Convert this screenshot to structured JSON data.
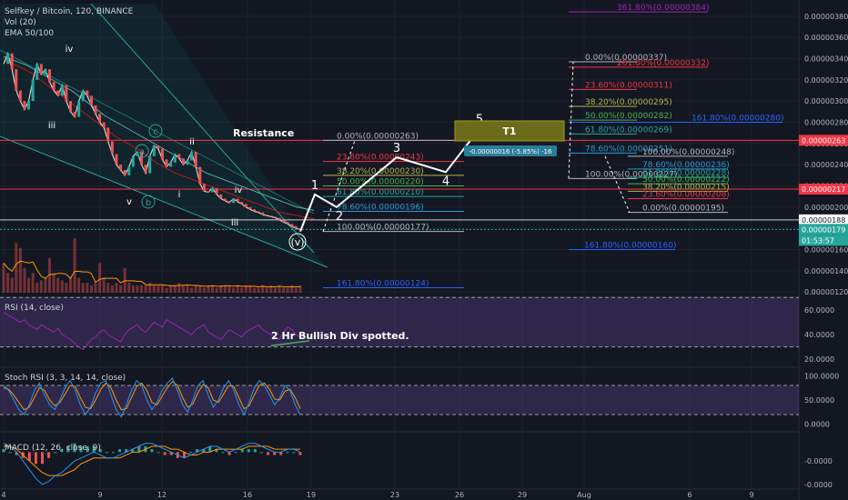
{
  "chart_data": {
    "type": "line",
    "title": "Selfkey / Bitcoin, 120, BINANCE",
    "indicators": {
      "vol": "Vol (20)",
      "ema": "EMA 50/100"
    },
    "x_tick_labels": [
      "4",
      "9",
      "12",
      "16",
      "19",
      "23",
      "26",
      "29",
      "Aug",
      "6",
      "9"
    ],
    "y_axis": {
      "ticks": [
        "0.00000380",
        "0.00000360",
        "0.00000340",
        "0.00000320",
        "0.00000300",
        "0.00000280",
        "0.00000260",
        "0.00000240",
        "0.00000220",
        "0.00000200",
        "0.00000180",
        "0.00000160",
        "0.00000140",
        "0.00000120"
      ],
      "range": [
        1.15e-06,
        3.91e-06
      ]
    },
    "price_tags": [
      {
        "label": "0.00000263",
        "color": "#f23645"
      },
      {
        "label": "0.00000217",
        "color": "#f23645"
      },
      {
        "label": "0.00000188",
        "color": "#ffffff"
      },
      {
        "label": "0.00000179",
        "color": "#26a69a"
      },
      {
        "label": "01:53:57",
        "color": "#26a69a"
      }
    ],
    "annotations": {
      "resistance": "Resistance",
      "target": "T1",
      "measure": "-0.00000016 (-5.85%) -16",
      "bullish_div": "2 Hr Bullish Div spotted."
    },
    "wave_labels_left": [
      "iv",
      "iii",
      "c",
      "a",
      "b",
      "ii",
      "i",
      "v",
      "iv",
      "iii",
      "(v)"
    ],
    "wave_labels_right": [
      "1",
      "2",
      "3",
      "4",
      "5"
    ],
    "fib_set_1": [
      {
        "label": "0.00%(0.00000263)",
        "value": 2.63e-06,
        "color": "#b2b5be"
      },
      {
        "label": "23.60%(0.00000243)",
        "value": 2.43e-06,
        "color": "#f23645"
      },
      {
        "label": "38.20%(0.00000230)",
        "value": 2.3e-06,
        "color": "#b5b54a"
      },
      {
        "label": "50.00%(0.00000220)",
        "value": 2.2e-06,
        "color": "#4caf50"
      },
      {
        "label": "61.80%(0.00000210)",
        "value": 2.1e-06,
        "color": "#26a69a"
      },
      {
        "label": "78.60%(0.00000196)",
        "value": 1.96e-06,
        "color": "#2a9bd6"
      },
      {
        "label": "100.00%(0.00000177)",
        "value": 1.77e-06,
        "color": "#b2b5be"
      },
      {
        "label": "161.80%(0.00000124)",
        "value": 1.24e-06,
        "color": "#2962ff"
      }
    ],
    "fib_set_2": [
      {
        "label": "0.00%(0.00000337)",
        "value": 3.37e-06,
        "color": "#b2b5be"
      },
      {
        "label": "23.60%(0.00000311)",
        "value": 3.11e-06,
        "color": "#f23645"
      },
      {
        "label": "38.20%(0.00000295)",
        "value": 2.95e-06,
        "color": "#b5b54a"
      },
      {
        "label": "50.00%(0.00000282)",
        "value": 2.82e-06,
        "color": "#4caf50"
      },
      {
        "label": "61.80%(0.00000269)",
        "value": 2.69e-06,
        "color": "#26a69a"
      },
      {
        "label": "78.60%(0.00000251)",
        "value": 2.51e-06,
        "color": "#2a9bd6"
      },
      {
        "label": "100.00%(0.00000227)",
        "value": 2.27e-06,
        "color": "#b2b5be"
      }
    ],
    "fib_set_3": [
      {
        "label": "100.00%(0.00000248)",
        "value": 2.48e-06,
        "color": "#b2b5be"
      },
      {
        "label": "78.60%(0.00000236)",
        "value": 2.36e-06,
        "color": "#2a9bd6"
      },
      {
        "label": "61.80%(0.00000228)",
        "value": 2.28e-06,
        "color": "#26a69a"
      },
      {
        "label": "50.00%(0.00000222)",
        "value": 2.22e-06,
        "color": "#4caf50"
      },
      {
        "label": "38.20%(0.00000215)",
        "value": 2.15e-06,
        "color": "#b5b54a"
      },
      {
        "label": "23.60%(0.00000208)",
        "value": 2.08e-06,
        "color": "#f23645"
      },
      {
        "label": "0.00%(0.00000195)",
        "value": 1.95e-06,
        "color": "#b2b5be"
      }
    ],
    "fib_extensions": [
      {
        "label": "361.80%(0.00000384)",
        "value": 3.84e-06,
        "color": "#9c27b0"
      },
      {
        "label": "261.80%(0.00000332)",
        "value": 3.32e-06,
        "color": "#f23645"
      },
      {
        "label": "161.80%(0.00000280)",
        "value": 2.8e-06,
        "color": "#2962ff"
      },
      {
        "label": "161.80%(0.00000160)",
        "value": 1.6e-06,
        "color": "#2962ff"
      }
    ],
    "rsi": {
      "label": "RSI (14, close)",
      "ticks": [
        "60.0000",
        "40.0000",
        "20.0000"
      ],
      "range": [
        15,
        68
      ],
      "values": [
        58,
        56,
        54,
        52,
        50,
        52,
        48,
        46,
        44,
        48,
        46,
        44,
        42,
        45,
        40,
        38,
        36,
        33,
        30,
        28,
        32,
        36,
        38,
        42,
        44,
        40,
        38,
        36,
        34,
        40,
        44,
        46,
        48,
        44,
        42,
        46,
        50,
        48,
        46,
        52,
        50,
        48,
        46,
        44,
        42,
        40,
        44,
        46,
        48,
        42,
        40,
        38,
        36,
        40,
        44,
        42,
        40,
        38,
        42,
        44,
        46,
        48,
        44,
        42,
        40,
        38,
        36,
        42,
        46,
        44,
        40,
        38
      ]
    },
    "stoch_rsi": {
      "label": "Stoch RSI (3, 3, 14, 14, close)",
      "ticks": [
        "100.0000",
        "50.0000",
        "0.0000"
      ],
      "range": [
        -10,
        110
      ],
      "k": [
        80,
        70,
        50,
        30,
        20,
        40,
        70,
        85,
        60,
        40,
        30,
        50,
        75,
        90,
        70,
        40,
        20,
        35,
        65,
        85,
        90,
        60,
        30,
        15,
        40,
        70,
        90,
        80,
        50,
        30,
        45,
        70,
        85,
        95,
        70,
        40,
        25,
        50,
        80,
        90,
        60,
        35,
        50,
        75,
        90,
        70,
        40,
        20,
        45,
        75,
        90,
        80,
        60,
        40,
        55,
        80,
        70,
        40,
        20
      ],
      "d": [
        75,
        72,
        60,
        45,
        30,
        35,
        55,
        75,
        70,
        50,
        38,
        45,
        62,
        80,
        78,
        55,
        35,
        32,
        50,
        72,
        85,
        75,
        50,
        30,
        32,
        55,
        78,
        85,
        70,
        45,
        40,
        58,
        75,
        88,
        80,
        55,
        35,
        42,
        65,
        82,
        75,
        50,
        45,
        62,
        80,
        78,
        55,
        32,
        38,
        60,
        80,
        85,
        72,
        52,
        50,
        68,
        72,
        55,
        32
      ]
    },
    "macd": {
      "label": "MACD (12, 26, close, 9)",
      "ticks": [
        "-0.0000",
        "-0.0000"
      ],
      "range": [
        -12,
        6
      ],
      "macd": [
        3,
        2,
        0,
        -3,
        -6,
        -9,
        -11,
        -10,
        -8,
        -7,
        -5,
        -3,
        -2,
        -1,
        0,
        -1,
        -2,
        -2,
        -1,
        0,
        1,
        2,
        3,
        3,
        2,
        1,
        0,
        -1,
        -2,
        -1,
        0,
        1,
        2,
        2,
        1,
        0,
        1,
        2,
        3,
        3,
        2,
        1,
        0,
        0,
        1,
        1,
        0
      ],
      "signal": [
        2,
        2,
        1,
        -1,
        -3,
        -5,
        -7,
        -8,
        -8,
        -8,
        -7,
        -6,
        -4,
        -3,
        -2,
        -2,
        -2,
        -2,
        -2,
        -1,
        0,
        0,
        1,
        2,
        2,
        2,
        1,
        1,
        0,
        -1,
        -1,
        0,
        0,
        1,
        1,
        1,
        1,
        1,
        2,
        2,
        2,
        2,
        1,
        1,
        1,
        1,
        1
      ],
      "hist": [
        1,
        0,
        -1,
        -2,
        -3,
        -4,
        -4,
        -2,
        0,
        1,
        2,
        3,
        2,
        2,
        2,
        1,
        0,
        0,
        1,
        1,
        1,
        2,
        2,
        1,
        0,
        -1,
        -1,
        -2,
        -2,
        0,
        1,
        1,
        2,
        1,
        0,
        -1,
        0,
        1,
        1,
        1,
        0,
        -1,
        -1,
        -1,
        0,
        0,
        -1
      ]
    },
    "price_series": [
      335,
      345,
      330,
      310,
      300,
      292,
      300,
      320,
      335,
      325,
      330,
      318,
      310,
      305,
      315,
      300,
      290,
      285,
      300,
      310,
      305,
      296,
      288,
      280,
      275,
      262,
      250,
      240,
      235,
      230,
      238,
      248,
      252,
      240,
      232,
      248,
      258,
      255,
      245,
      238,
      242,
      250,
      246,
      240,
      244,
      252,
      238,
      222,
      215,
      214,
      218,
      212,
      208,
      206,
      204,
      208,
      205,
      203,
      200,
      198,
      196,
      195,
      193,
      192,
      191,
      190,
      188,
      186,
      184,
      182,
      180,
      179
    ],
    "volume_series": [
      12,
      8,
      6,
      20,
      18,
      10,
      6,
      8,
      4,
      5,
      6,
      14,
      8,
      6,
      5,
      4,
      6,
      22,
      6,
      4,
      4,
      3,
      4,
      12,
      6,
      4,
      3,
      4,
      3,
      10,
      4,
      3,
      3,
      3,
      3,
      4,
      3,
      3,
      3,
      2,
      3,
      3,
      4,
      3,
      3,
      2,
      3,
      3,
      2,
      3,
      3,
      2,
      3,
      3,
      3,
      2,
      3,
      2,
      3,
      3,
      2,
      2,
      3,
      2,
      3,
      2,
      3,
      2,
      2,
      3,
      2,
      3
    ],
    "ema50": [
      338,
      336,
      334,
      332,
      329,
      326,
      322,
      318,
      314,
      310,
      306,
      302,
      298,
      294,
      290,
      286,
      282,
      278,
      274,
      270,
      266,
      263,
      260,
      257,
      254,
      250,
      246,
      242,
      239,
      236,
      233,
      231,
      229,
      227,
      225,
      223,
      221,
      219,
      217,
      215,
      213,
      211,
      209,
      207,
      205,
      203,
      201,
      199,
      197,
      195,
      194,
      193,
      192,
      191,
      190,
      189
    ],
    "ema100": [
      342,
      340,
      338,
      336,
      334,
      331,
      328,
      325,
      322,
      319,
      316,
      313,
      310,
      306,
      302,
      298,
      294,
      290,
      286,
      283,
      280,
      277,
      274,
      271,
      268,
      265,
      262,
      259,
      256,
      253,
      250,
      247,
      244,
      241,
      238,
      235,
      232,
      230,
      228,
      226,
      224,
      222,
      220,
      218,
      216,
      214,
      212,
      210,
      208,
      206,
      204,
      202,
      200,
      199,
      198,
      197
    ],
    "forecast_path": [
      {
        "label": "(v)",
        "value": 1.77e-06
      },
      {
        "label": "1",
        "value": 2.12e-06
      },
      {
        "label": "2",
        "value": 2e-06
      },
      {
        "label": "3",
        "value": 2.47e-06
      },
      {
        "label": "4",
        "value": 2.33e-06
      },
      {
        "label": "5",
        "value": 2.74e-06
      }
    ]
  }
}
